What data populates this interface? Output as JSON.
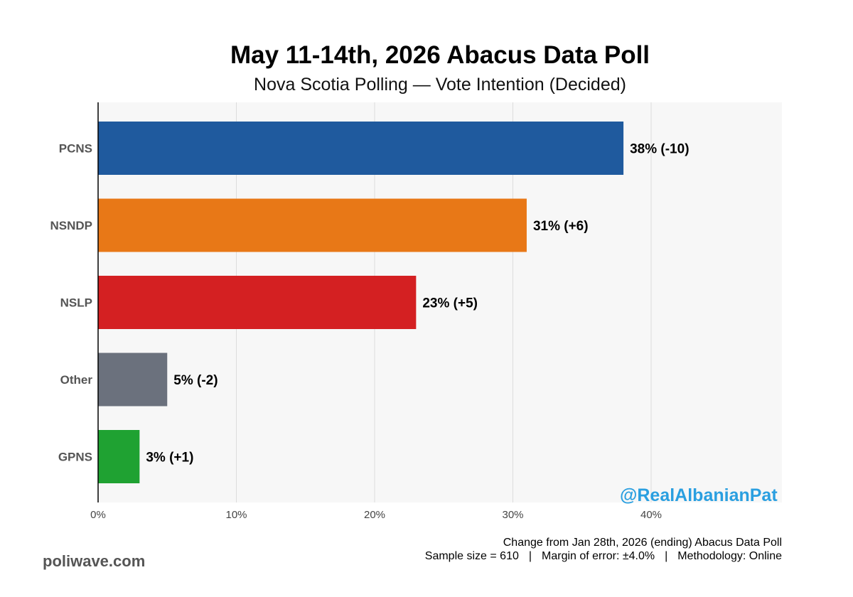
{
  "chart_data": {
    "type": "bar",
    "orientation": "horizontal",
    "title": "May 11-14th, 2026 Abacus Data Poll",
    "subtitle": "Nova Scotia Polling — Vote Intention (Decided)",
    "categories": [
      "PCNS",
      "NSNDP",
      "NSLP",
      "Other",
      "GPNS"
    ],
    "values": [
      38,
      31,
      23,
      5,
      3
    ],
    "data_labels": [
      "38% (-10)",
      "31% (+6)",
      "23% (+5)",
      "5% (-2)",
      "3% (+1)"
    ],
    "colors": [
      "#1f5a9e",
      "#e87817",
      "#d42022",
      "#6b717d",
      "#1fa232"
    ],
    "xlim": [
      0,
      49.5
    ],
    "x_ticks": [
      0,
      10,
      20,
      30,
      40
    ],
    "x_tick_labels": [
      "0%",
      "10%",
      "20%",
      "30%",
      "40%"
    ],
    "grid": true,
    "plot_background": "#f7f7f7"
  },
  "watermark": "@RealAlbanianPat",
  "footnote": {
    "line1": "Change from Jan 28th, 2026 (ending) Abacus Data Poll",
    "sample": "Sample size = 610",
    "separator": "|",
    "margin": "Margin of error: ±4.0%",
    "method": "Methodology: Online"
  },
  "brand": "poliwave.com"
}
